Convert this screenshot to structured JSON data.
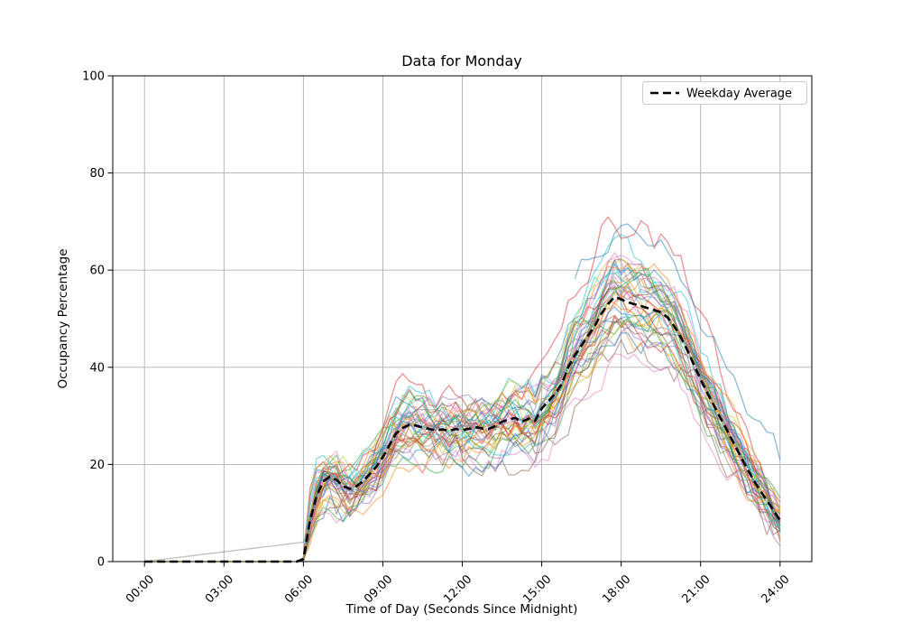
{
  "title": "Data for Monday",
  "xlabel": "Time of Day (Seconds Since Midnight)",
  "ylabel": "Occupancy Percentage",
  "legend": {
    "label": "Weekday Average",
    "line_style": "dashed",
    "line_color": "#000000"
  },
  "colors": {
    "background": "#ffffff",
    "grid": "#b0b0b0",
    "spine": "#000000",
    "average_line": "#000000",
    "palette": [
      "#1f77b4",
      "#ff7f0e",
      "#2ca02c",
      "#d62728",
      "#9467bd",
      "#8c564b",
      "#e377c2",
      "#7f7f7f",
      "#bcbd22",
      "#17becf"
    ]
  },
  "chart_data": {
    "type": "line",
    "title": "Data for Monday",
    "xlabel": "Time of Day (Seconds Since Midnight)",
    "ylabel": "Occupancy Percentage",
    "grid": true,
    "legend_position": "upper right",
    "xlim_seconds": [
      -4320,
      90720
    ],
    "ylim": [
      0,
      100
    ],
    "x_tick_seconds": [
      0,
      10800,
      21600,
      32400,
      43200,
      54000,
      64800,
      75600,
      86400
    ],
    "x_tick_labels": [
      "00:00",
      "03:00",
      "06:00",
      "09:00",
      "12:00",
      "15:00",
      "18:00",
      "21:00",
      "24:00"
    ],
    "x_tick_rotation_deg": 45,
    "y_ticks": [
      0,
      20,
      40,
      60,
      80,
      100
    ],
    "average": {
      "name": "Weekday Average",
      "interval_seconds": 900,
      "values": [
        0,
        0,
        0,
        0,
        0,
        0,
        0,
        0,
        0,
        0,
        0,
        0,
        0,
        0,
        0,
        0,
        0,
        0,
        0,
        0,
        0,
        0,
        0,
        0,
        0.5,
        8.5,
        13.5,
        16.5,
        17.5,
        16.8,
        15.5,
        15.0,
        15.5,
        16.5,
        18.0,
        19.5,
        21.5,
        24.0,
        26.4,
        27.5,
        28.2,
        28.0,
        27.6,
        27.3,
        27.0,
        27.2,
        26.9,
        27.3,
        27.1,
        27.3,
        27.7,
        27.4,
        27.3,
        27.9,
        28.8,
        29.2,
        29.6,
        28.8,
        29.4,
        29.0,
        31.5,
        33.0,
        34.5,
        36.5,
        40.0,
        42.5,
        44.5,
        46.5,
        48.5,
        51.0,
        53.0,
        54.5,
        54.0,
        53.4,
        53.0,
        52.6,
        52.2,
        51.8,
        51.3,
        50.3,
        48.5,
        46.2,
        43.5,
        40.5,
        37.5,
        34.8,
        32.2,
        29.6,
        27.0,
        24.4,
        21.8,
        19.2,
        16.8,
        14.6,
        12.6,
        10.6,
        8.5
      ]
    },
    "traces_note": "Individual weekday traces (semi-transparent). Each trace is the average curve scaled by s with smoothed pseudo-random deviation of amplitude a generated from seed.",
    "trace_opacity": 0.5,
    "traces": [
      {
        "c": 0,
        "seed": 11,
        "s": 0.95,
        "a": 5
      },
      {
        "c": 1,
        "seed": 12,
        "s": 1.05,
        "a": 6
      },
      {
        "c": 2,
        "seed": 13,
        "s": 0.85,
        "a": 5
      },
      {
        "c": 3,
        "seed": 14,
        "s": 1.28,
        "a": 7
      },
      {
        "c": 4,
        "seed": 15,
        "s": 1.0,
        "a": 5
      },
      {
        "c": 5,
        "seed": 16,
        "s": 0.8,
        "a": 9
      },
      {
        "c": 6,
        "seed": 17,
        "s": 1.1,
        "a": 6
      },
      {
        "c": 7,
        "seed": 18,
        "s": 1.0,
        "a": 3,
        "preRamp": true
      },
      {
        "c": 8,
        "seed": 19,
        "s": 1.05,
        "a": 9
      },
      {
        "c": 9,
        "seed": 20,
        "s": 1.15,
        "a": 6
      },
      {
        "c": 0,
        "seed": 21,
        "s": 1.05,
        "a": 5,
        "b": 12,
        "start": 65
      },
      {
        "c": 1,
        "seed": 22,
        "s": 0.9,
        "a": 6
      },
      {
        "c": 2,
        "seed": 23,
        "s": 1.08,
        "a": 5
      },
      {
        "c": 3,
        "seed": 24,
        "s": 0.88,
        "a": 5
      },
      {
        "c": 4,
        "seed": 25,
        "s": 1.12,
        "a": 6
      },
      {
        "c": 5,
        "seed": 26,
        "s": 1.02,
        "a": 4
      },
      {
        "c": 6,
        "seed": 27,
        "s": 0.82,
        "a": 7
      },
      {
        "c": 7,
        "seed": 28,
        "s": 1.06,
        "a": 5
      },
      {
        "c": 8,
        "seed": 29,
        "s": 0.96,
        "a": 6
      },
      {
        "c": 9,
        "seed": 30,
        "s": 1.05,
        "a": 5,
        "end": 89
      },
      {
        "c": 0,
        "seed": 31,
        "s": 1.1,
        "a": 5
      },
      {
        "c": 1,
        "seed": 32,
        "s": 1.0,
        "a": 7
      },
      {
        "c": 2,
        "seed": 33,
        "s": 0.92,
        "a": 5
      },
      {
        "c": 3,
        "seed": 34,
        "s": 1.05,
        "a": 6
      },
      {
        "c": 4,
        "seed": 35,
        "s": 0.86,
        "a": 5
      },
      {
        "c": 5,
        "seed": 36,
        "s": 1.1,
        "a": 5
      },
      {
        "c": 6,
        "seed": 37,
        "s": 1.0,
        "a": 6
      },
      {
        "c": 7,
        "seed": 38,
        "s": 0.9,
        "a": 4
      },
      {
        "c": 8,
        "seed": 39,
        "s": 1.15,
        "a": 5
      },
      {
        "c": 9,
        "seed": 40,
        "s": 0.95,
        "a": 5
      },
      {
        "c": 0,
        "seed": 41,
        "s": 0.85,
        "a": 6
      },
      {
        "c": 1,
        "seed": 42,
        "s": 1.12,
        "a": 5
      },
      {
        "c": 2,
        "seed": 43,
        "s": 1.02,
        "a": 6
      },
      {
        "c": 3,
        "seed": 44,
        "s": 0.95,
        "a": 5
      },
      {
        "c": 4,
        "seed": 45,
        "s": 1.05,
        "a": 5
      },
      {
        "c": 5,
        "seed": 46,
        "s": 0.93,
        "a": 6,
        "b": -3
      },
      {
        "c": 6,
        "seed": 47,
        "s": 1.15,
        "a": 5
      },
      {
        "c": 7,
        "seed": 48,
        "s": 0.98,
        "a": 5
      },
      {
        "c": 8,
        "seed": 49,
        "s": 0.88,
        "a": 5
      },
      {
        "c": 9,
        "seed": 50,
        "s": 1.08,
        "a": 6
      },
      {
        "c": 0,
        "seed": 51,
        "s": 1.02,
        "a": 5
      },
      {
        "c": 1,
        "seed": 52,
        "s": 0.97,
        "a": 5
      }
    ]
  }
}
